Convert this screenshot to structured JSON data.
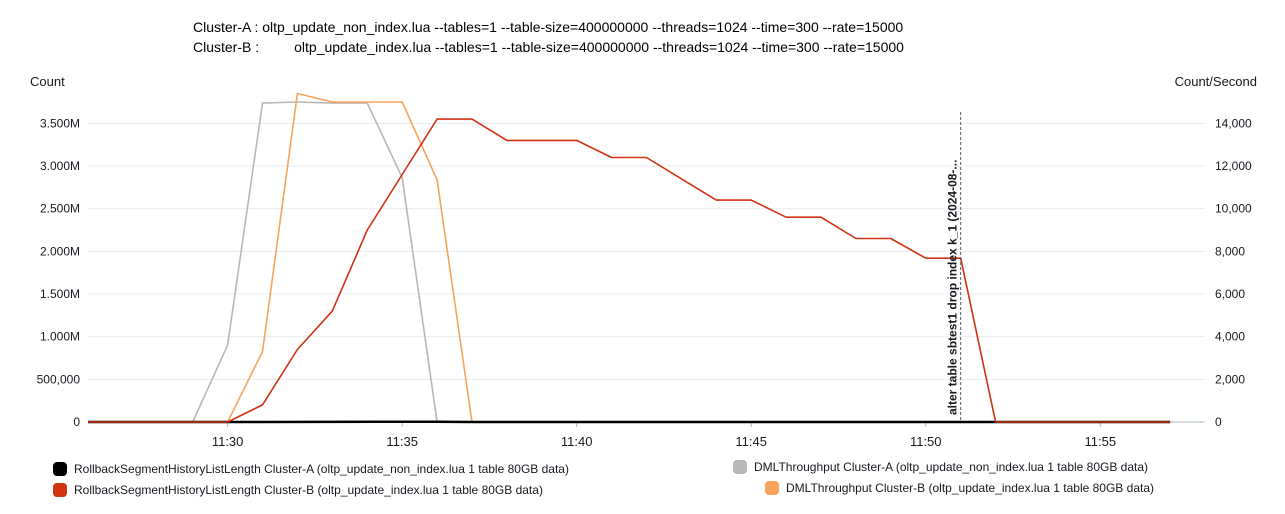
{
  "header": {
    "line_a": "Cluster-A : oltp_update_non_index.lua --tables=1 --table-size=400000000 --threads=1024 --time=300 --rate=15000",
    "line_b": "Cluster-B :         oltp_update_index.lua --tables=1 --table-size=400000000 --threads=1024 --time=300 --rate=15000"
  },
  "chart_data": {
    "type": "line",
    "ylabel": "Count",
    "y2label": "Count/Second",
    "x_ticks": [
      "11:30",
      "11:35",
      "11:40",
      "11:45",
      "11:50",
      "11:55"
    ],
    "xlim": [
      "11:26",
      "11:58"
    ],
    "ylim": [
      0,
      3750000
    ],
    "y2lim": [
      0,
      15000
    ],
    "y_ticks": [
      0,
      500000,
      1000000,
      1500000,
      2000000,
      2500000,
      3000000,
      3500000
    ],
    "y_tick_labels": [
      "0",
      "500,000",
      "1.000M",
      "1.500M",
      "2.000M",
      "2.500M",
      "3.000M",
      "3.500M"
    ],
    "y2_ticks": [
      0,
      2000,
      4000,
      6000,
      8000,
      10000,
      12000,
      14000
    ],
    "y2_tick_labels": [
      "0",
      "2,000",
      "4,000",
      "6,000",
      "8,000",
      "10,000",
      "12,000",
      "14,000"
    ],
    "grid": true,
    "legend_position": "bottom",
    "annotation": {
      "x": "11:51",
      "text": "alter table sbtest1 drop index k_1 (2024-08-..."
    },
    "series": [
      {
        "name": "RollbackSegmentHistoryListLength Cluster-A (oltp_update_non_index.lua 1 table 80GB data)",
        "axis": "left",
        "color": "#000000",
        "x": [
          "11:26",
          "11:30",
          "11:31",
          "11:36",
          "11:37",
          "11:57"
        ],
        "values": [
          0,
          0,
          0,
          3000,
          0,
          0
        ]
      },
      {
        "name": "RollbackSegmentHistoryListLength Cluster-B (oltp_update_index.lua 1 table 80GB data)",
        "axis": "left",
        "color": "#d13212",
        "x": [
          "11:26",
          "11:27",
          "11:28",
          "11:29",
          "11:30",
          "11:31",
          "11:32",
          "11:33",
          "11:34",
          "11:35",
          "11:36",
          "11:37",
          "11:38",
          "11:39",
          "11:40",
          "11:41",
          "11:42",
          "11:43",
          "11:44",
          "11:45",
          "11:46",
          "11:47",
          "11:48",
          "11:49",
          "11:50",
          "11:51",
          "11:52",
          "11:53",
          "11:54",
          "11:55",
          "11:56",
          "11:57"
        ],
        "values": [
          0,
          0,
          0,
          0,
          0,
          200000,
          850000,
          1300000,
          2250000,
          2900000,
          3550000,
          3550000,
          3300000,
          3300000,
          3300000,
          3100000,
          3100000,
          2850000,
          2600000,
          2600000,
          2400000,
          2400000,
          2150000,
          2150000,
          1920000,
          1920000,
          0,
          0,
          0,
          0,
          0,
          0
        ]
      },
      {
        "name": "DMLThroughput Cluster-A (oltp_update_non_index.lua 1 table 80GB data)",
        "axis": "right",
        "color": "#b8b8b8",
        "x": [
          "11:26",
          "11:29",
          "11:30",
          "11:31",
          "11:32",
          "11:33",
          "11:34",
          "11:35",
          "11:36",
          "11:37",
          "11:57"
        ],
        "values": [
          0,
          0,
          3600,
          14950,
          15000,
          14950,
          14950,
          11450,
          0,
          0,
          0
        ]
      },
      {
        "name": "DMLThroughput Cluster-B (oltp_update_index.lua 1 table 80GB data)",
        "axis": "right",
        "color": "#f7a35c",
        "x": [
          "11:26",
          "11:30",
          "11:31",
          "11:32",
          "11:33",
          "11:34",
          "11:35",
          "11:36",
          "11:37",
          "11:57"
        ],
        "values": [
          0,
          0,
          3300,
          15400,
          15000,
          15000,
          15000,
          11350,
          0,
          0
        ]
      }
    ]
  }
}
